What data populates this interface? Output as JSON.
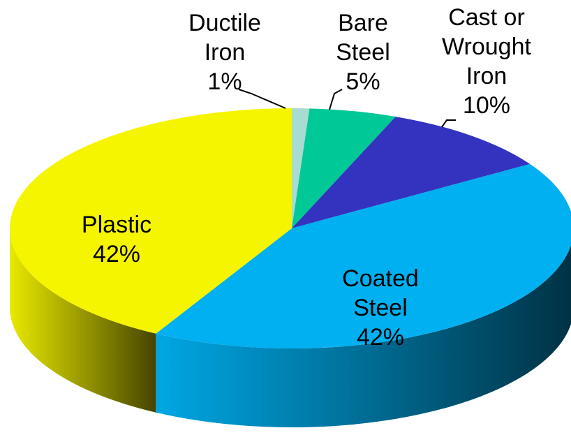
{
  "chart_data": {
    "type": "pie",
    "style": "3d",
    "slices": [
      {
        "label": [
          "Ductile",
          "Iron",
          "1%"
        ],
        "value": 1,
        "color": "#a8dcd0"
      },
      {
        "label": [
          "Bare",
          "Steel",
          "5%"
        ],
        "value": 5,
        "color": "#00c896"
      },
      {
        "label": [
          "Cast or",
          "Wrought",
          "Iron",
          "10%"
        ],
        "value": 10,
        "color": "#3333c0"
      },
      {
        "label": [
          "Coated",
          "Steel",
          "42%"
        ],
        "value": 42,
        "color": "#00b0f0"
      },
      {
        "label": [
          "Plastic",
          "42%"
        ],
        "value": 42,
        "color": "#f5f500"
      }
    ]
  }
}
